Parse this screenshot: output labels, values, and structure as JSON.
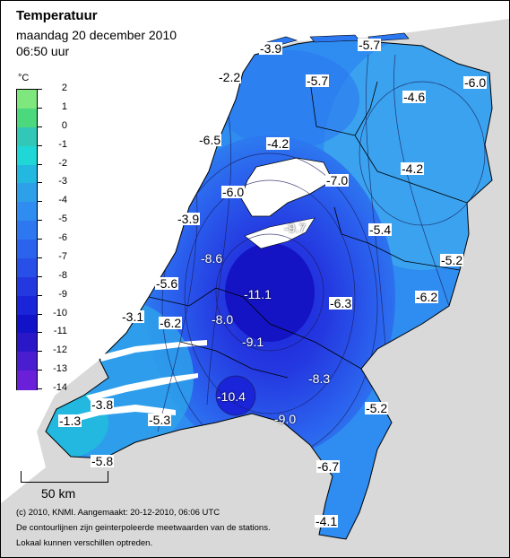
{
  "header": {
    "title": "Temperatuur",
    "date": "maandag 20 december 2010",
    "time": "06:50 uur"
  },
  "legend": {
    "unit": "°C",
    "labels": [
      "2",
      "1",
      "0",
      "-1",
      "-2",
      "-3",
      "-4",
      "-5",
      "-6",
      "-7",
      "-8",
      "-9",
      "-10",
      "-11",
      "-12",
      "-13",
      "-14"
    ],
    "colors": [
      "#7ee87e",
      "#4cd87c",
      "#32c8b8",
      "#1fd7d7",
      "#22b8e0",
      "#2ea0ea",
      "#2f8cf0",
      "#2d78f0",
      "#2b63ee",
      "#2850e8",
      "#2438e0",
      "#1a24d8",
      "#1212c8",
      "#2a18c8",
      "#4a1ed0",
      "#6a20d8"
    ]
  },
  "stations": [
    {
      "value": "-3.9"
    },
    {
      "value": "-5.7"
    },
    {
      "value": "-2.2"
    },
    {
      "value": "-5.7"
    },
    {
      "value": "-4.6"
    },
    {
      "value": "-6.0"
    },
    {
      "value": "-6.5"
    },
    {
      "value": "-4.2"
    },
    {
      "value": "-7.0"
    },
    {
      "value": "-4.2"
    },
    {
      "value": "-6.0"
    },
    {
      "value": "-3.9"
    },
    {
      "value": "-9.7"
    },
    {
      "value": "-5.4"
    },
    {
      "value": "-8.6"
    },
    {
      "value": "-5.2"
    },
    {
      "value": "-5.6"
    },
    {
      "value": "-11.1"
    },
    {
      "value": "-6.3"
    },
    {
      "value": "-6.2"
    },
    {
      "value": "-3.1"
    },
    {
      "value": "-6.2"
    },
    {
      "value": "-8.0"
    },
    {
      "value": "-9.1"
    },
    {
      "value": "-8.3"
    },
    {
      "value": "-3.8"
    },
    {
      "value": "-10.4"
    },
    {
      "value": "-5.2"
    },
    {
      "value": "-1.3"
    },
    {
      "value": "-5.3"
    },
    {
      "value": "-9.0"
    },
    {
      "value": "-5.8"
    },
    {
      "value": "-6.7"
    },
    {
      "value": "-4.1"
    }
  ],
  "scale": {
    "label": "50 km"
  },
  "footer": {
    "line1": "(c) 2010, KNMI. Aangemaakt: 20-12-2010, 06:06 UTC",
    "line2": "De contourlijnen zijn geinterpoleerde meetwaarden van de stations.",
    "line3": "Lokaal kunnen verschillen optreden."
  },
  "colors": {
    "background": "#d9d9d9",
    "sea": "#ffffff"
  }
}
